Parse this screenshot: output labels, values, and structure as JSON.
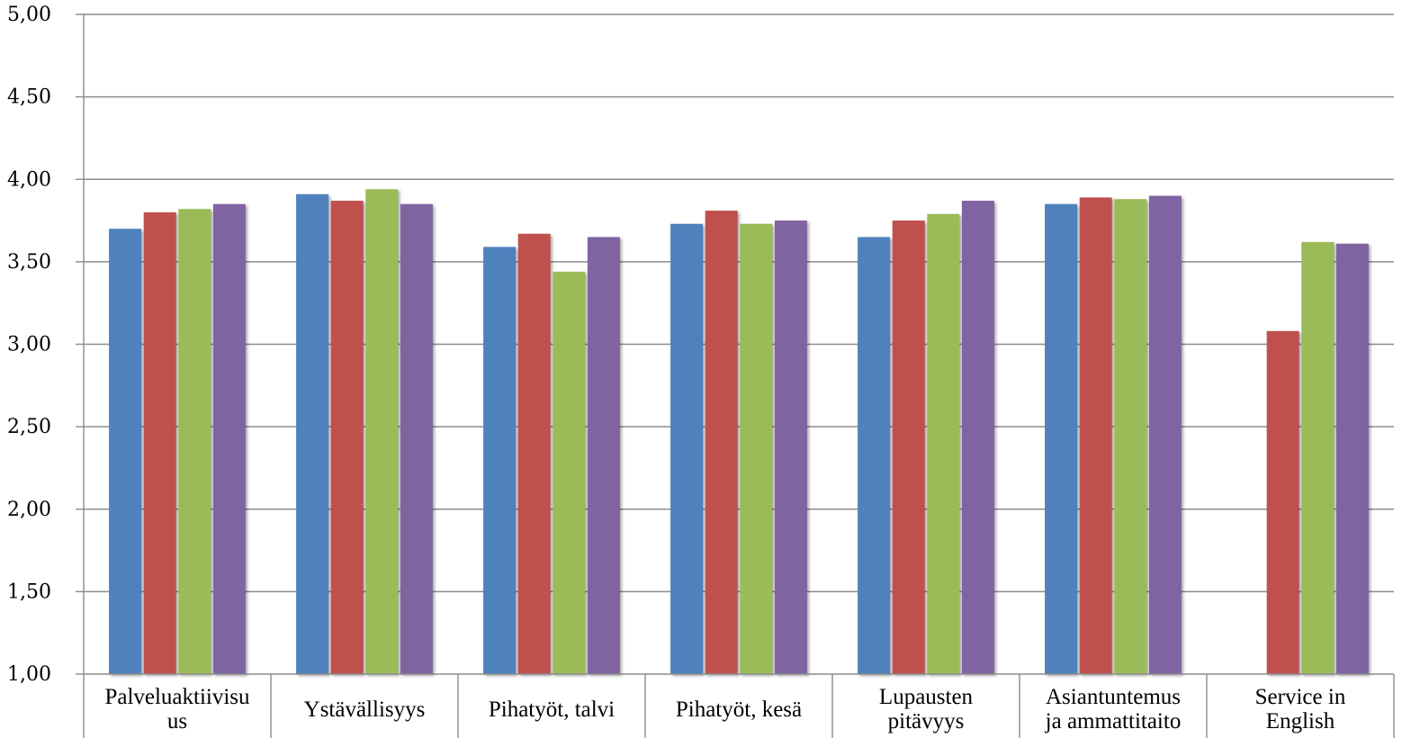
{
  "chart_data": {
    "type": "bar",
    "title": "",
    "xlabel": "",
    "ylabel": "",
    "ylim": [
      1.0,
      5.0
    ],
    "yticks": [
      "1,00",
      "1,50",
      "2,00",
      "2,50",
      "3,00",
      "3,50",
      "4,00",
      "4,50",
      "5,00"
    ],
    "ytick_values": [
      1.0,
      1.5,
      2.0,
      2.5,
      3.0,
      3.5,
      4.0,
      4.5,
      5.0
    ],
    "grid": true,
    "legend": "none",
    "categories": [
      [
        "Palveluaktiivisu",
        "us"
      ],
      [
        "Ystävällisyys"
      ],
      [
        "Pihatyöt, talvi"
      ],
      [
        "Pihatyöt, kesä"
      ],
      [
        "Lupausten",
        "pitävyys"
      ],
      [
        "Asiantuntemus",
        "ja ammattitaito"
      ],
      [
        "Service in",
        "English"
      ]
    ],
    "series": [
      {
        "color": "#4F81BD",
        "values": [
          3.7,
          3.91,
          3.59,
          3.73,
          3.65,
          3.85,
          null
        ]
      },
      {
        "color": "#C0504D",
        "values": [
          3.8,
          3.87,
          3.67,
          3.81,
          3.75,
          3.89,
          3.08
        ]
      },
      {
        "color": "#9BBB59",
        "values": [
          3.82,
          3.94,
          3.44,
          3.73,
          3.79,
          3.88,
          3.62
        ]
      },
      {
        "color": "#8064A2",
        "values": [
          3.85,
          3.85,
          3.65,
          3.75,
          3.87,
          3.9,
          3.61
        ]
      }
    ]
  }
}
